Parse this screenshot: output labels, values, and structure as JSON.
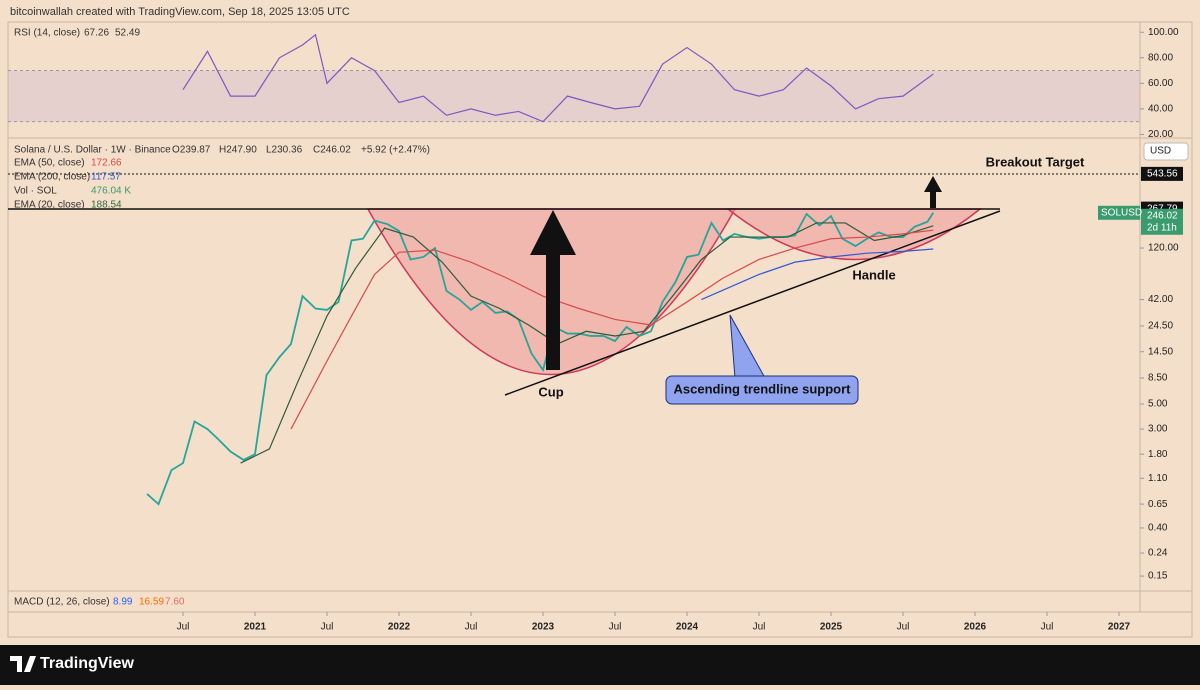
{
  "header": {
    "text": "bitcoinwallah created with TradingView.com, Sep 18, 2025 13:05 UTC"
  },
  "footer": {
    "brand": "TradingView"
  },
  "rsi": {
    "type": "line",
    "legend": "RSI (14, close)",
    "value_text": "67.26",
    "ma_text": "52.49",
    "color": "#7e57c2",
    "ylim": [
      18,
      108
    ],
    "band": [
      30,
      70
    ],
    "yticks": [
      {
        "value": 100,
        "label": "100.00"
      },
      {
        "value": 80,
        "label": "80.00"
      },
      {
        "value": 60,
        "label": "60.00"
      },
      {
        "value": 40,
        "label": "40.00"
      },
      {
        "value": 20,
        "label": "20.00"
      }
    ],
    "x": [
      2020.5,
      2020.67,
      2020.83,
      2021.0,
      2021.17,
      2021.33,
      2021.42,
      2021.5,
      2021.67,
      2021.83,
      2022.0,
      2022.17,
      2022.33,
      2022.5,
      2022.67,
      2022.83,
      2023.0,
      2023.17,
      2023.33,
      2023.5,
      2023.67,
      2023.83,
      2024.0,
      2024.17,
      2024.33,
      2024.5,
      2024.67,
      2024.83,
      2025.0,
      2025.17,
      2025.33,
      2025.5,
      2025.71
    ],
    "values": [
      55,
      85,
      50,
      50,
      80,
      90,
      98,
      60,
      80,
      70,
      45,
      50,
      35,
      40,
      35,
      38,
      30,
      50,
      45,
      40,
      42,
      75,
      88,
      75,
      55,
      50,
      55,
      72,
      58,
      40,
      48,
      50,
      67.26
    ]
  },
  "chart_data": {
    "type": "line",
    "log_scale": true,
    "title": "Solana / U.S. Dollar · 1W · Binance",
    "ohlc": [
      "O239.87",
      "H247.90",
      "L230.36",
      "C246.02",
      "+5.92 (+2.47%)"
    ],
    "indicators": [
      {
        "label": "EMA (50, close)",
        "value": "172.66",
        "color": "#d84a4a"
      },
      {
        "label": "EMA (200, close)",
        "value": "117.57",
        "color": "#2f5bd3"
      },
      {
        "label": "Vol · SOL",
        "value": "476.04 K",
        "color": "#3a9b6e"
      },
      {
        "label": "EMA (20, close)",
        "value": "188.54",
        "color": "#2e6b3e"
      }
    ],
    "currency": "USD",
    "ylim": [
      0.113,
      1084
    ],
    "xlim": [
      2019.4,
      2027.3
    ],
    "yticks": [
      {
        "value": 120,
        "label": "120.00"
      },
      {
        "value": 42,
        "label": "42.00"
      },
      {
        "value": 24.5,
        "label": "24.50"
      },
      {
        "value": 14.5,
        "label": "14.50"
      },
      {
        "value": 8.5,
        "label": "8.50"
      },
      {
        "value": 5,
        "label": "5.00"
      },
      {
        "value": 3,
        "label": "3.00"
      },
      {
        "value": 1.8,
        "label": "1.80"
      },
      {
        "value": 1.1,
        "label": "1.10"
      },
      {
        "value": 0.65,
        "label": "0.65"
      },
      {
        "value": 0.4,
        "label": "0.40"
      },
      {
        "value": 0.24,
        "label": "0.24"
      },
      {
        "value": 0.15,
        "label": "0.15"
      }
    ],
    "price_labels": [
      {
        "value": 543.56,
        "label": "543.56"
      },
      {
        "value": 267.79,
        "label": "267.79"
      }
    ],
    "last": {
      "symbol": "SOLUSD",
      "value": 246.02,
      "label": "246.02",
      "countdown": "2d 11h"
    },
    "xticks": [
      {
        "value": 2020.5,
        "label": "Jul"
      },
      2021,
      {
        "value": 2021.5,
        "label": "Jul"
      },
      2022,
      {
        "value": 2022.5,
        "label": "Jul"
      },
      2023,
      {
        "value": 2023.5,
        "label": "Jul"
      },
      2024,
      {
        "value": 2024.5,
        "label": "Jul"
      },
      2025,
      {
        "value": 2025.5,
        "label": "Jul"
      },
      2026,
      {
        "value": 2026.5,
        "label": "Jul"
      },
      2027
    ],
    "series": [
      {
        "name": "SOLUSD",
        "color": "#26a69a",
        "x": [
          2020.25,
          2020.33,
          2020.42,
          2020.5,
          2020.58,
          2020.67,
          2020.75,
          2020.83,
          2020.92,
          2021.0,
          2021.08,
          2021.17,
          2021.25,
          2021.33,
          2021.42,
          2021.5,
          2021.58,
          2021.67,
          2021.75,
          2021.83,
          2021.92,
          2022.0,
          2022.08,
          2022.17,
          2022.25,
          2022.33,
          2022.42,
          2022.5,
          2022.58,
          2022.67,
          2022.75,
          2022.83,
          2022.92,
          2023.0,
          2023.08,
          2023.17,
          2023.25,
          2023.33,
          2023.42,
          2023.5,
          2023.58,
          2023.67,
          2023.75,
          2023.83,
          2023.92,
          2024.0,
          2024.08,
          2024.17,
          2024.25,
          2024.33,
          2024.42,
          2024.5,
          2024.58,
          2024.67,
          2024.75,
          2024.83,
          2024.92,
          2025.0,
          2025.08,
          2025.17,
          2025.25,
          2025.33,
          2025.42,
          2025.5,
          2025.58,
          2025.67,
          2025.71
        ],
        "values": [
          0.8,
          0.65,
          1.3,
          1.5,
          3.5,
          3,
          2.4,
          1.9,
          1.6,
          1.8,
          9,
          13,
          17,
          45,
          35,
          34,
          40,
          140,
          145,
          210,
          195,
          170,
          95,
          100,
          120,
          50,
          42,
          34,
          40,
          32,
          33,
          28,
          14,
          10,
          24,
          21,
          21,
          20,
          20,
          18,
          24,
          20,
          22,
          40,
          60,
          100,
          105,
          200,
          140,
          160,
          150,
          145,
          150,
          150,
          155,
          240,
          190,
          230,
          145,
          125,
          145,
          165,
          150,
          150,
          185,
          205,
          246.02
        ]
      },
      {
        "name": "EMA (20, close)",
        "color": "#2e5a3a",
        "x": [
          2020.9,
          2021.1,
          2021.3,
          2021.5,
          2021.7,
          2021.9,
          2022.1,
          2022.3,
          2022.5,
          2022.7,
          2022.9,
          2023.1,
          2023.3,
          2023.5,
          2023.7,
          2023.9,
          2024.1,
          2024.3,
          2024.5,
          2024.7,
          2024.9,
          2025.1,
          2025.3,
          2025.5,
          2025.71
        ],
        "values": [
          1.5,
          2,
          8,
          30,
          80,
          180,
          150,
          90,
          45,
          35,
          25,
          17,
          22,
          20,
          22,
          45,
          95,
          150,
          150,
          150,
          200,
          200,
          140,
          155,
          188.54
        ]
      },
      {
        "name": "EMA (50, close)",
        "color": "#d84a4a",
        "x": [
          2021.25,
          2021.5,
          2021.67,
          2021.83,
          2022.0,
          2022.25,
          2022.5,
          2022.75,
          2023.0,
          2023.25,
          2023.5,
          2023.75,
          2024.0,
          2024.25,
          2024.5,
          2024.75,
          2025.0,
          2025.25,
          2025.5,
          2025.71
        ],
        "values": [
          3,
          12,
          30,
          70,
          110,
          115,
          90,
          65,
          45,
          35,
          28,
          25,
          40,
          65,
          95,
          120,
          145,
          150,
          160,
          172.66
        ]
      },
      {
        "name": "EMA (200, close)",
        "color": "#2f5bd3",
        "x": [
          2024.1,
          2024.5,
          2024.75,
          2025.0,
          2025.25,
          2025.5,
          2025.71
        ],
        "values": [
          42,
          70,
          90,
          100,
          108,
          112,
          117.57
        ]
      }
    ],
    "annotations": {
      "target": "Breakout Target",
      "cup": "Cup",
      "handle": "Handle",
      "trendline": "Ascending trendline support"
    }
  },
  "macd": {
    "legend": "MACD (12, 26, close)",
    "values": [
      "8.99",
      "16.59",
      "7.60"
    ],
    "colors": [
      "#2962ff",
      "#ff6d00",
      "#e26b6b"
    ]
  }
}
